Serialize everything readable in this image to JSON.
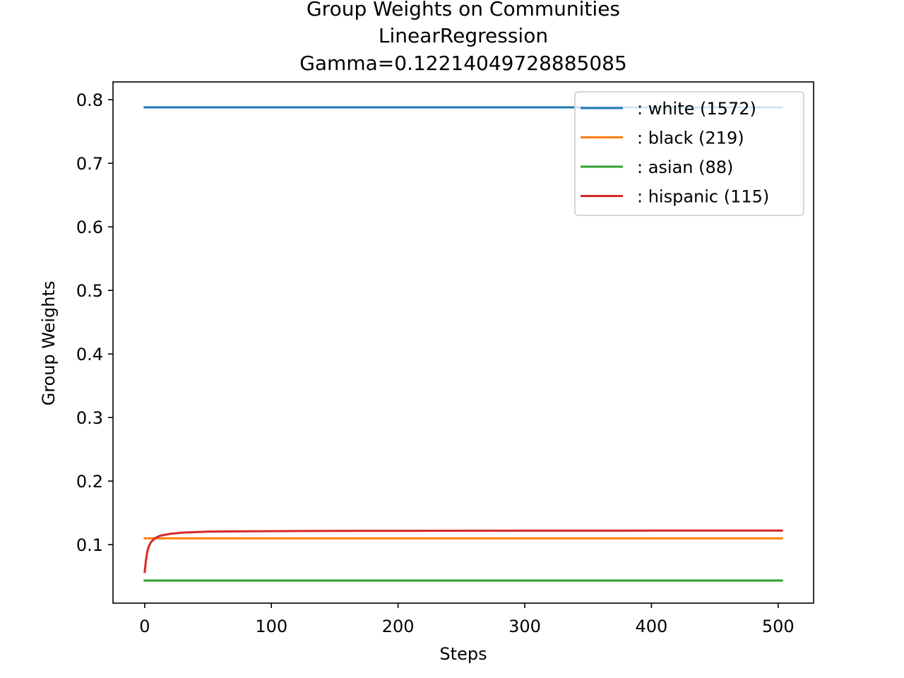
{
  "chart_data": {
    "type": "line",
    "title_lines": [
      "Group Weights on Communities",
      "LinearRegression",
      "Gamma=0.12214049728885085"
    ],
    "xlabel": "Steps",
    "ylabel": "Group Weights",
    "xlim": [
      -25,
      528
    ],
    "ylim": [
      0.008,
      0.828
    ],
    "xticks": [
      0,
      100,
      200,
      300,
      400,
      500
    ],
    "yticks": [
      0.1,
      0.2,
      0.3,
      0.4,
      0.5,
      0.6,
      0.7,
      0.8
    ],
    "xtick_labels": [
      "0",
      "100",
      "200",
      "300",
      "400",
      "500"
    ],
    "ytick_labels": [
      "0.1",
      "0.2",
      "0.3",
      "0.4",
      "0.5",
      "0.6",
      "0.7",
      "0.8"
    ],
    "legend_position": "top-right",
    "series": [
      {
        "name": ": white  (1572)",
        "color": "#1f77b4",
        "x": [
          0,
          503
        ],
        "y": [
          0.788,
          0.788
        ]
      },
      {
        "name": ": black  (219)",
        "color": "#ff7f0e",
        "x": [
          0,
          503
        ],
        "y": [
          0.11,
          0.11
        ]
      },
      {
        "name": ": asian  (88)",
        "color": "#2ca02c",
        "x": [
          0,
          503
        ],
        "y": [
          0.0435,
          0.0435
        ]
      },
      {
        "name": ": hispanic  (115)",
        "color": "#d62728",
        "x": [
          0,
          1,
          2,
          3,
          5,
          8,
          12,
          20,
          30,
          50,
          80,
          120,
          200,
          300,
          400,
          503
        ],
        "y": [
          0.057,
          0.075,
          0.088,
          0.096,
          0.104,
          0.11,
          0.114,
          0.117,
          0.119,
          0.1205,
          0.121,
          0.1215,
          0.1218,
          0.122,
          0.1221,
          0.1221
        ]
      }
    ]
  }
}
